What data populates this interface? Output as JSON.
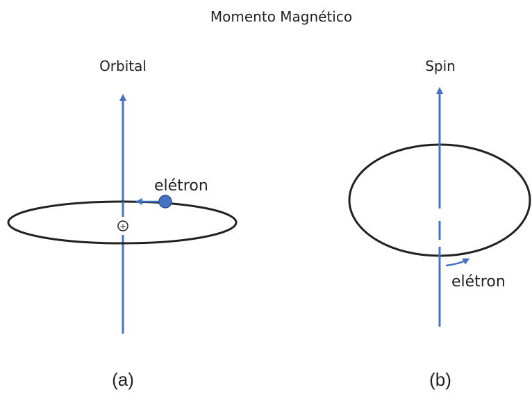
{
  "title": "Momento Magnético",
  "panels": [
    {
      "heading": "Orbital",
      "label": "elétron",
      "caption": "(a)"
    },
    {
      "heading": "Spin",
      "label": "elétron",
      "caption": "(b)"
    }
  ]
}
